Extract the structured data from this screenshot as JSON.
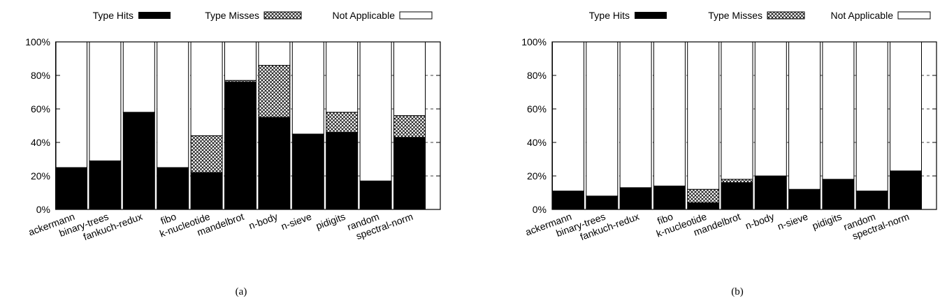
{
  "legend": {
    "hits": "Type Hits",
    "misses": "Type Misses",
    "na": "Not Applicable"
  },
  "colors": {
    "hits": "#000000",
    "na": "#ffffff",
    "misses_pattern": "crosshatch",
    "grid": "#000000"
  },
  "chart_data": [
    {
      "type": "bar",
      "stacked": true,
      "caption": "(a)",
      "categories": [
        "ackermann",
        "binary-trees",
        "fankuch-redux",
        "fibo",
        "k-nucleotide",
        "mandelbrot",
        "n-body",
        "n-sieve",
        "pidigits",
        "random",
        "spectral-norm"
      ],
      "series": [
        {
          "name": "Type Hits",
          "values": [
            25,
            29,
            58,
            25,
            22,
            76,
            55,
            45,
            46,
            17,
            43
          ]
        },
        {
          "name": "Type Misses",
          "values": [
            0,
            0,
            0,
            0,
            22,
            1,
            31,
            0,
            12,
            0,
            13
          ]
        },
        {
          "name": "Not Applicable",
          "values": [
            75,
            71,
            42,
            75,
            56,
            23,
            14,
            55,
            42,
            83,
            44
          ]
        }
      ],
      "ylim": [
        0,
        100
      ],
      "yticks": [
        "0%",
        "20%",
        "40%",
        "60%",
        "80%",
        "100%"
      ],
      "grid": "dashed horizontal",
      "legend_position": "top"
    },
    {
      "type": "bar",
      "stacked": true,
      "caption": "(b)",
      "categories": [
        "ackermann",
        "binary-trees",
        "fankuch-redux",
        "fibo",
        "k-nucleotide",
        "mandelbrot",
        "n-body",
        "n-sieve",
        "pidigits",
        "random",
        "spectral-norm"
      ],
      "series": [
        {
          "name": "Type Hits",
          "values": [
            11,
            8,
            13,
            14,
            4,
            16,
            20,
            12,
            18,
            11,
            23
          ]
        },
        {
          "name": "Type Misses",
          "values": [
            0,
            0,
            0,
            0,
            8,
            2,
            0,
            0,
            0,
            0,
            0
          ]
        },
        {
          "name": "Not Applicable",
          "values": [
            89,
            92,
            87,
            86,
            88,
            82,
            80,
            88,
            82,
            89,
            77
          ]
        }
      ],
      "ylim": [
        0,
        100
      ],
      "yticks": [
        "0%",
        "20%",
        "40%",
        "60%",
        "80%",
        "100%"
      ],
      "grid": "dashed horizontal",
      "legend_position": "top"
    }
  ]
}
